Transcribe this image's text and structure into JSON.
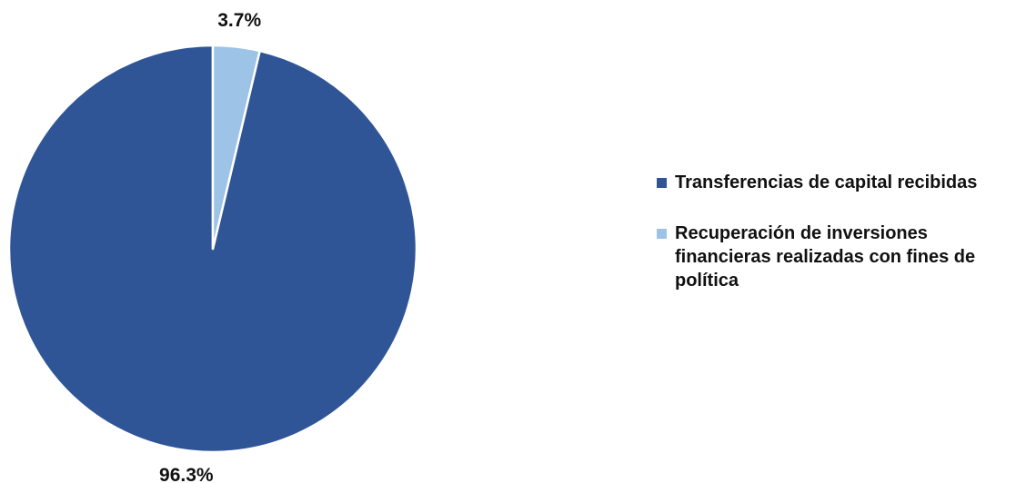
{
  "chart_data": {
    "type": "pie",
    "title": "",
    "slices": [
      {
        "label": "Transferencias de capital recibidas",
        "value": 96.3,
        "data_label": "96.3%",
        "color": "#2F5597"
      },
      {
        "label": "Recuperación de inversiones financieras realizadas con fines de política",
        "value": 3.7,
        "data_label": "3.7%",
        "color": "#9DC3E6"
      }
    ],
    "start_angle_deg": 0,
    "direction": "counterclockwise",
    "legend_position": "right",
    "slice_border_color": "#FFFFFF"
  }
}
